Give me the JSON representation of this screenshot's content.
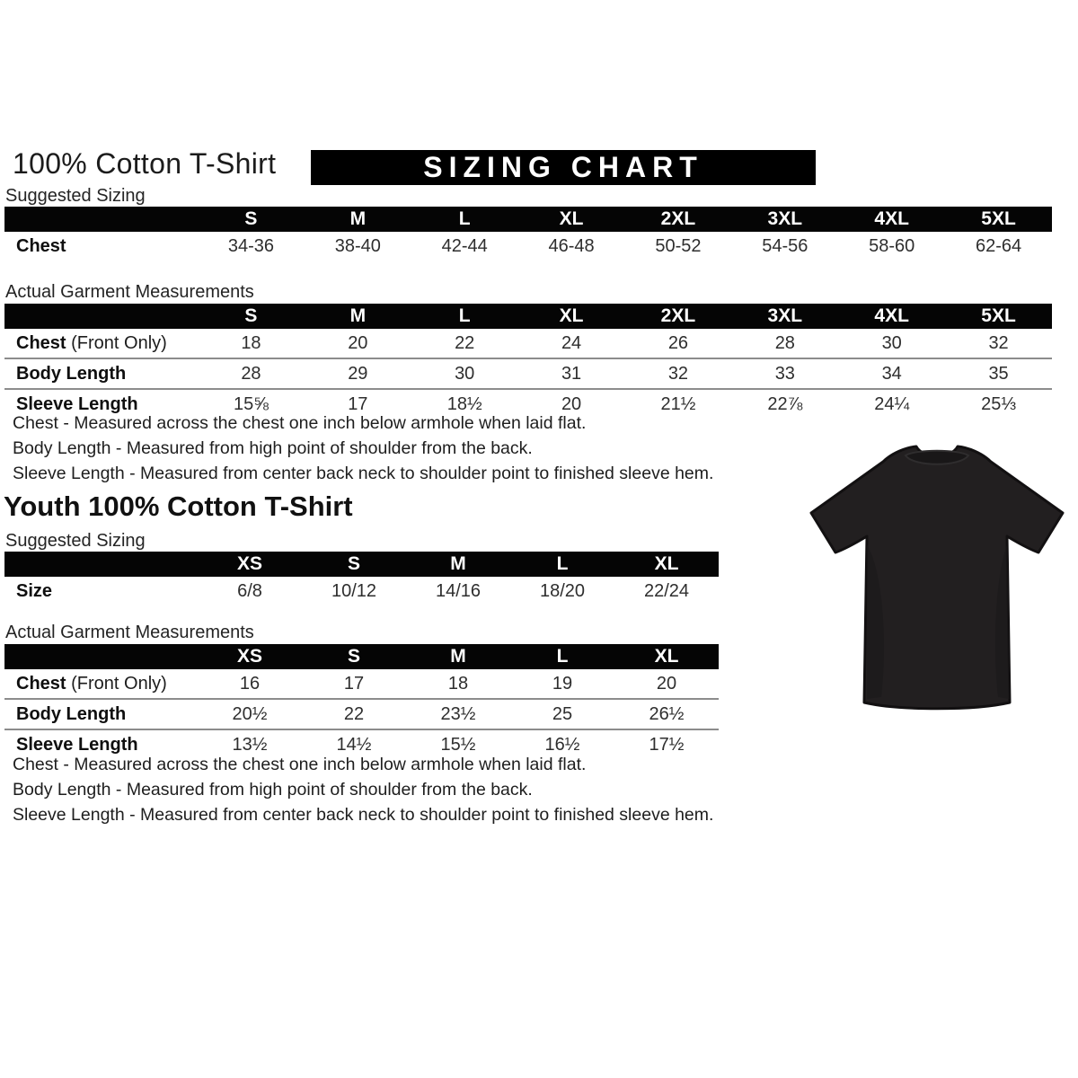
{
  "adult": {
    "title": "100% Cotton T-Shirt",
    "banner_label": "SIZING CHART",
    "suggested_sizing_label": "Suggested Sizing",
    "suggested_table": {
      "columns": [
        "S",
        "M",
        "L",
        "XL",
        "2XL",
        "3XL",
        "4XL",
        "5XL"
      ],
      "rows": [
        {
          "label": "Chest",
          "suffix": "",
          "values": [
            "34-36",
            "38-40",
            "42-44",
            "46-48",
            "50-52",
            "54-56",
            "58-60",
            "62-64"
          ]
        }
      ]
    },
    "measurements_label": "Actual Garment Measurements",
    "measurements_table": {
      "columns": [
        "S",
        "M",
        "L",
        "XL",
        "2XL",
        "3XL",
        "4XL",
        "5XL"
      ],
      "rows": [
        {
          "label": "Chest",
          "suffix": " (Front Only)",
          "values": [
            "18",
            "20",
            "22",
            "24",
            "26",
            "28",
            "30",
            "32"
          ]
        },
        {
          "label": "Body Length",
          "suffix": "",
          "values": [
            "28",
            "29",
            "30",
            "31",
            "32",
            "33",
            "34",
            "35"
          ]
        },
        {
          "label": "Sleeve Length",
          "suffix": "",
          "values": [
            "15⅝",
            "17",
            "18½",
            "20",
            "21½",
            "22⅞",
            "24¼",
            "25⅓"
          ]
        }
      ]
    },
    "notes": [
      "Chest - Measured across the chest one inch below armhole when laid flat.",
      "Body Length - Measured from high point of shoulder from the back.",
      "Sleeve Length - Measured from center back neck to shoulder point to finished sleeve hem."
    ]
  },
  "youth": {
    "title": "Youth 100% Cotton T-Shirt",
    "suggested_sizing_label": "Suggested Sizing",
    "suggested_table": {
      "columns": [
        "XS",
        "S",
        "M",
        "L",
        "XL"
      ],
      "rows": [
        {
          "label": "Size",
          "suffix": "",
          "values": [
            "6/8",
            "10/12",
            "14/16",
            "18/20",
            "22/24"
          ]
        }
      ]
    },
    "measurements_label": "Actual Garment Measurements",
    "measurements_table": {
      "columns": [
        "XS",
        "S",
        "M",
        "L",
        "XL"
      ],
      "rows": [
        {
          "label": "Chest",
          "suffix": " (Front Only)",
          "values": [
            "16",
            "17",
            "18",
            "19",
            "20"
          ]
        },
        {
          "label": "Body Length",
          "suffix": "",
          "values": [
            "20½",
            "22",
            "23½",
            "25",
            "26½"
          ]
        },
        {
          "label": "Sleeve Length",
          "suffix": "",
          "values": [
            "13½",
            "14½",
            "15½",
            "16½",
            "17½"
          ]
        }
      ]
    },
    "notes": [
      "Chest - Measured across the chest one inch below armhole when laid flat.",
      "Body Length - Measured from high point of shoulder from the back.",
      "Sleeve Length - Measured from center back neck to shoulder point to finished sleeve hem."
    ]
  },
  "product_image": {
    "description": "black cotton t-shirt, front view",
    "shirt_color": "#221f20"
  },
  "colors": {
    "banner_bg": "#000000",
    "banner_text": "#ffffff",
    "table_header_bg": "#050505",
    "table_header_text": "#ffffff",
    "row_divider": "#8c8c8c",
    "body_text": "#1e1e1e"
  }
}
